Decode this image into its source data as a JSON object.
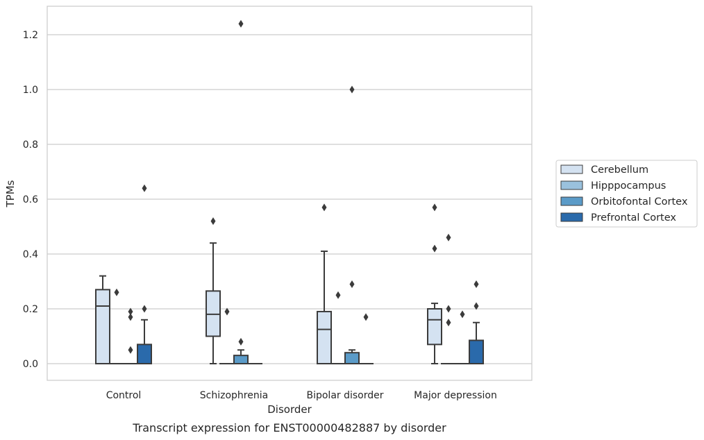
{
  "chart_data": {
    "type": "box",
    "xlabel": "Disorder",
    "ylabel": "TPMs",
    "caption": "Transcript expression for ENST00000482887 by disorder",
    "ylim": [
      -0.06,
      1.3
    ],
    "yticks": [
      0.0,
      0.2,
      0.4,
      0.6,
      0.8,
      1.0,
      1.2
    ],
    "ytick_labels": [
      "0.0",
      "0.2",
      "0.4",
      "0.6",
      "0.8",
      "1.0",
      "1.2"
    ],
    "grid": "horizontal",
    "legend_position": "right",
    "categories": [
      "Control",
      "Schizophrenia",
      "Bipolar disorder",
      "Major depression"
    ],
    "series": [
      {
        "name": "Cerebellum",
        "color": "#d4e2f1",
        "boxes": [
          {
            "whislo": 0.0,
            "q1": 0.0,
            "med": 0.21,
            "q3": 0.27,
            "whishi": 0.32,
            "fliers": []
          },
          {
            "whislo": 0.0,
            "q1": 0.1,
            "med": 0.18,
            "q3": 0.265,
            "whishi": 0.44,
            "fliers": [
              0.52
            ]
          },
          {
            "whislo": 0.0,
            "q1": 0.0,
            "med": 0.125,
            "q3": 0.19,
            "whishi": 0.41,
            "fliers": [
              0.57
            ]
          },
          {
            "whislo": 0.0,
            "q1": 0.07,
            "med": 0.16,
            "q3": 0.2,
            "whishi": 0.22,
            "fliers": [
              0.42,
              0.57
            ]
          }
        ]
      },
      {
        "name": "Hipppocampus",
        "color": "#9ac1dd",
        "boxes": [
          {
            "whislo": 0.0,
            "q1": 0.0,
            "med": 0.0,
            "q3": 0.0,
            "whishi": 0.0,
            "fliers": [
              0.26
            ]
          },
          {
            "whislo": 0.0,
            "q1": 0.0,
            "med": 0.0,
            "q3": 0.0,
            "whishi": 0.0,
            "fliers": [
              0.19
            ]
          },
          {
            "whislo": 0.0,
            "q1": 0.0,
            "med": 0.0,
            "q3": 0.0,
            "whishi": 0.0,
            "fliers": [
              0.25
            ]
          },
          {
            "whislo": 0.0,
            "q1": 0.0,
            "med": 0.0,
            "q3": 0.0,
            "whishi": 0.0,
            "fliers": [
              0.15,
              0.2,
              0.46
            ]
          }
        ]
      },
      {
        "name": "Orbitofontal Cortex",
        "color": "#5b9bc8",
        "boxes": [
          {
            "whislo": 0.0,
            "q1": 0.0,
            "med": 0.0,
            "q3": 0.0,
            "whishi": 0.0,
            "fliers": [
              0.05,
              0.17,
              0.19
            ]
          },
          {
            "whislo": 0.0,
            "q1": 0.0,
            "med": 0.0,
            "q3": 0.03,
            "whishi": 0.05,
            "fliers": [
              0.08,
              1.24
            ]
          },
          {
            "whislo": 0.0,
            "q1": 0.0,
            "med": 0.0,
            "q3": 0.04,
            "whishi": 0.05,
            "fliers": [
              0.29,
              1.0
            ]
          },
          {
            "whislo": 0.0,
            "q1": 0.0,
            "med": 0.0,
            "q3": 0.0,
            "whishi": 0.0,
            "fliers": [
              0.18
            ]
          }
        ]
      },
      {
        "name": "Prefrontal Cortex",
        "color": "#2a6aab",
        "boxes": [
          {
            "whislo": 0.0,
            "q1": 0.0,
            "med": 0.0,
            "q3": 0.07,
            "whishi": 0.16,
            "fliers": [
              0.2,
              0.64
            ]
          },
          {
            "whislo": 0.0,
            "q1": 0.0,
            "med": 0.0,
            "q3": 0.0,
            "whishi": 0.0,
            "fliers": []
          },
          {
            "whislo": 0.0,
            "q1": 0.0,
            "med": 0.0,
            "q3": 0.0,
            "whishi": 0.0,
            "fliers": [
              0.17
            ]
          },
          {
            "whislo": 0.0,
            "q1": 0.0,
            "med": 0.0,
            "q3": 0.085,
            "whishi": 0.15,
            "fliers": [
              0.21,
              0.29
            ]
          }
        ]
      }
    ]
  }
}
